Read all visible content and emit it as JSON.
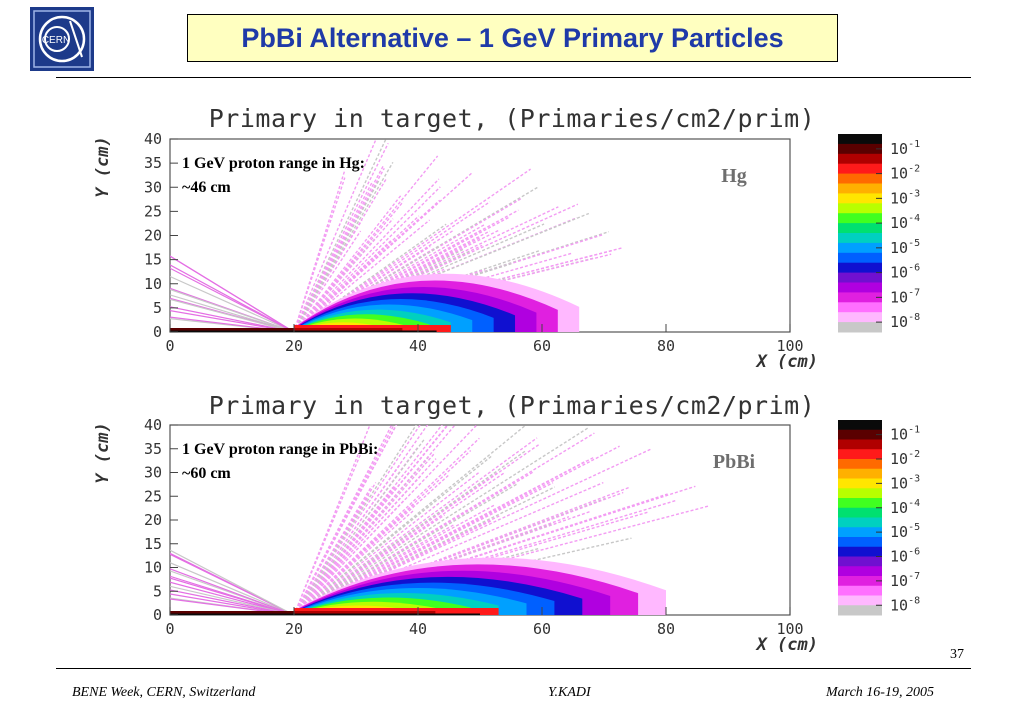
{
  "slide": {
    "title": "PbBi Alternative – 1 GeV Primary Particles",
    "logo_text": "CERN",
    "page_number": "37",
    "footer_left": "BENE Week, CERN, Switzerland",
    "footer_center": "Y.KADI",
    "footer_right": "March 16-19, 2005"
  },
  "chart_data": [
    {
      "type": "heatmap",
      "title": "Primary in target, (Primaries/cm2/prim)",
      "xlabel": "X (cm)",
      "ylabel": "Y (cm)",
      "xlim": [
        0,
        100
      ],
      "ylim": [
        0,
        40
      ],
      "x_ticks": [
        "0",
        "20",
        "40",
        "60",
        "80",
        "100"
      ],
      "y_ticks": [
        "0",
        "5",
        "10",
        "15",
        "20",
        "25",
        "30",
        "35",
        "40"
      ],
      "colorbar": {
        "scale": "log",
        "tick_labels": [
          [
            "10",
            "-1"
          ],
          [
            "10",
            "-2"
          ],
          [
            "10",
            "-3"
          ],
          [
            "10",
            "-4"
          ],
          [
            "10",
            "-5"
          ],
          [
            "10",
            "-6"
          ],
          [
            "10",
            "-7"
          ],
          [
            "10",
            "-8"
          ]
        ],
        "colors": [
          "#0a0a0a",
          "#5a0000",
          "#b00000",
          "#ff1a1a",
          "#ff6a00",
          "#ffb000",
          "#ffe600",
          "#b8ff00",
          "#40ff20",
          "#00e070",
          "#00d0c0",
          "#00a0ff",
          "#0060ff",
          "#1010d0",
          "#7010d0",
          "#b000e0",
          "#e020e0",
          "#ff70ff",
          "#ffb8ff",
          "#c8c8c8"
        ]
      },
      "annotation_lines": [
        "1 GeV proton range in Hg:",
        "~46 cm"
      ],
      "material_label": "Hg",
      "beam_entry_x": 20,
      "range_x": 66
    },
    {
      "type": "heatmap",
      "title": "Primary in target, (Primaries/cm2/prim)",
      "xlabel": "X (cm)",
      "ylabel": "Y (cm)",
      "xlim": [
        0,
        100
      ],
      "ylim": [
        0,
        40
      ],
      "x_ticks": [
        "0",
        "20",
        "40",
        "60",
        "80",
        "100"
      ],
      "y_ticks": [
        "0",
        "5",
        "10",
        "15",
        "20",
        "25",
        "30",
        "35",
        "40"
      ],
      "colorbar": {
        "scale": "log",
        "tick_labels": [
          [
            "10",
            "-1"
          ],
          [
            "10",
            "-2"
          ],
          [
            "10",
            "-3"
          ],
          [
            "10",
            "-4"
          ],
          [
            "10",
            "-5"
          ],
          [
            "10",
            "-6"
          ],
          [
            "10",
            "-7"
          ],
          [
            "10",
            "-8"
          ]
        ],
        "colors": [
          "#0a0a0a",
          "#5a0000",
          "#b00000",
          "#ff1a1a",
          "#ff6a00",
          "#ffb000",
          "#ffe600",
          "#b8ff00",
          "#40ff20",
          "#00e070",
          "#00d0c0",
          "#00a0ff",
          "#0060ff",
          "#1010d0",
          "#7010d0",
          "#b000e0",
          "#e020e0",
          "#ff70ff",
          "#ffb8ff",
          "#c8c8c8"
        ]
      },
      "annotation_lines": [
        "1 GeV proton range in PbBi:",
        "~60 cm"
      ],
      "material_label": "PbBi",
      "beam_entry_x": 20,
      "range_x": 80
    }
  ]
}
